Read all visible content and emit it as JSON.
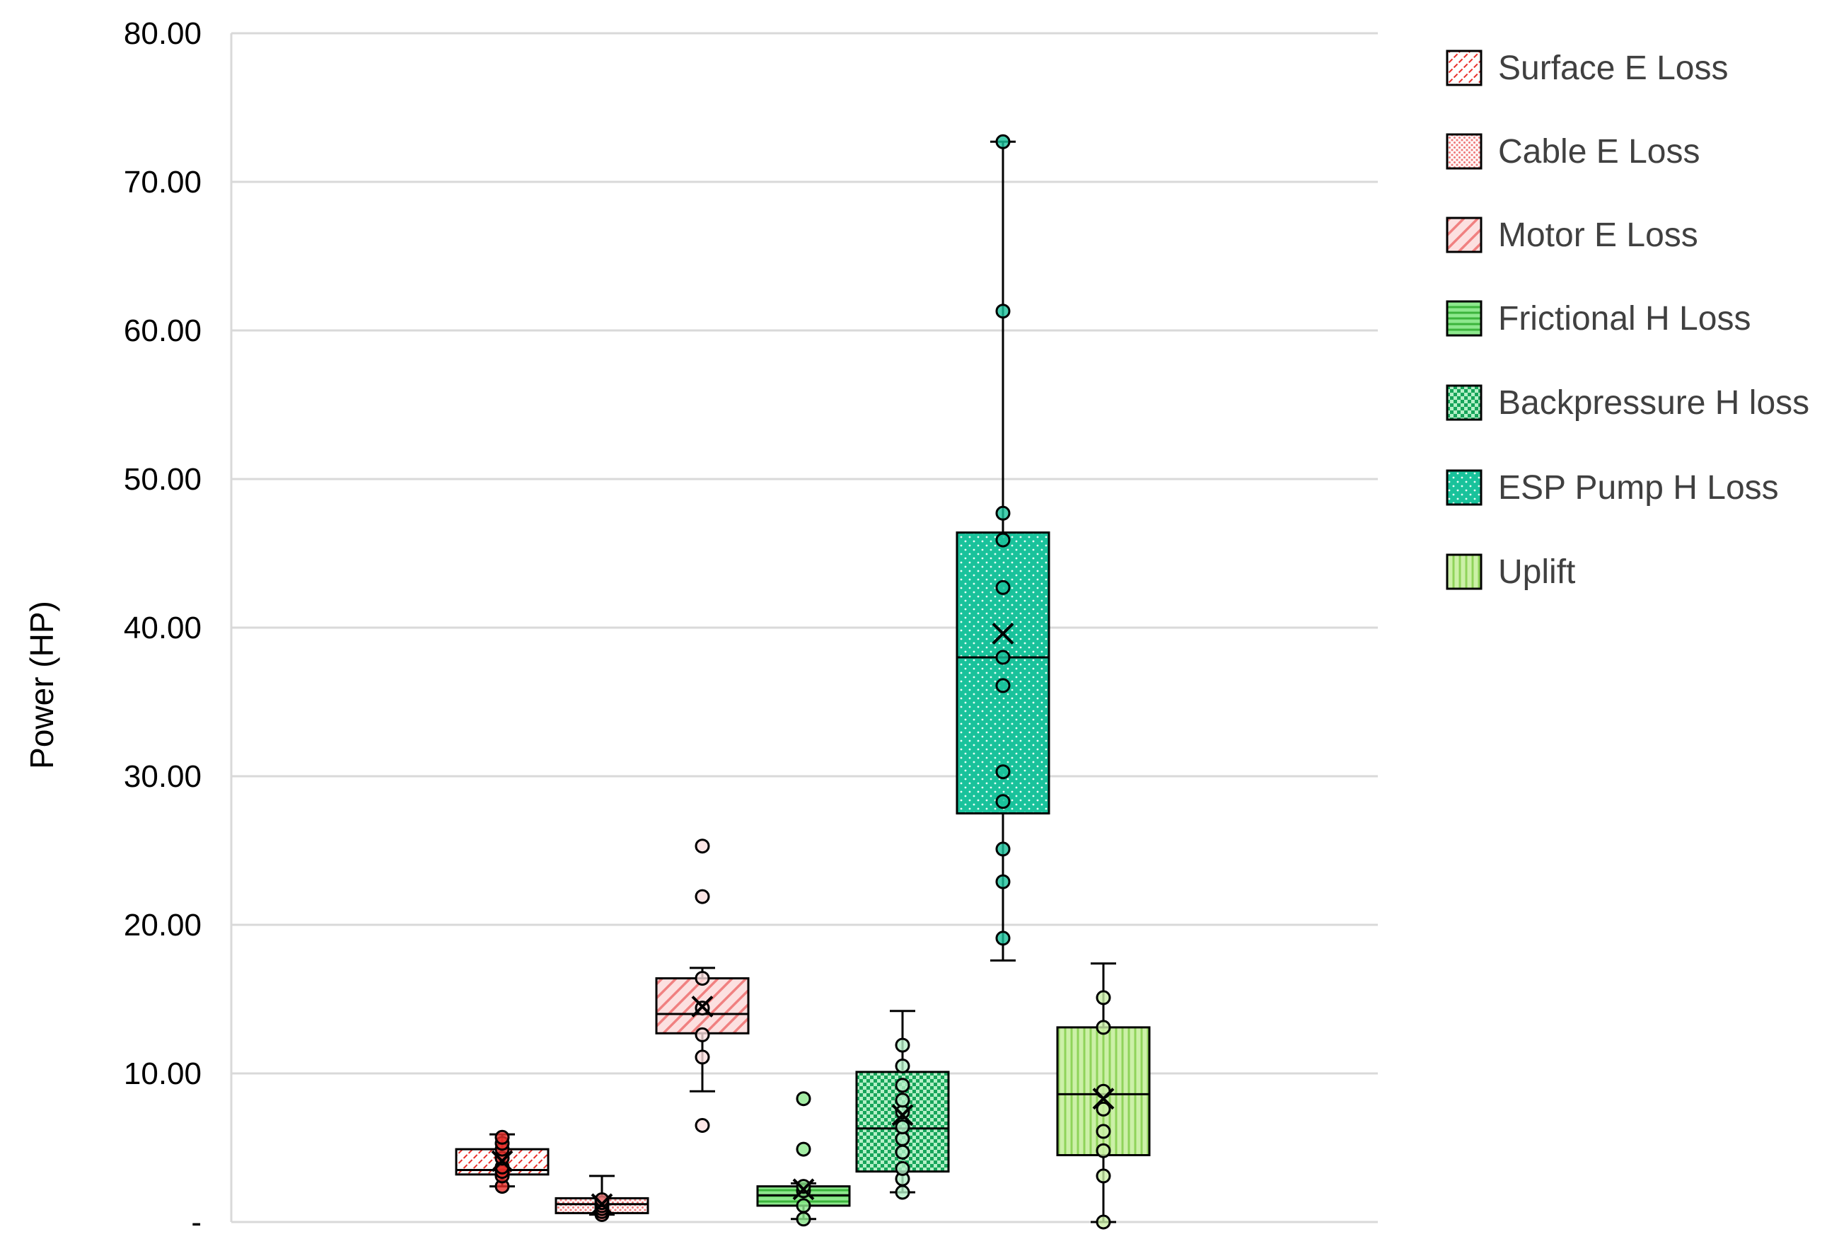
{
  "chart_data": {
    "type": "boxplot",
    "title": "",
    "xlabel": "",
    "ylabel": "Power (HP)",
    "ylim": [
      0,
      80
    ],
    "y_ticks": [
      "-",
      "10.00",
      "20.00",
      "30.00",
      "40.00",
      "50.00",
      "60.00",
      "70.00",
      "80.00"
    ],
    "y_tick_values": [
      0,
      10,
      20,
      30,
      40,
      50,
      60,
      70,
      80
    ],
    "grid": true,
    "legend_position": "right",
    "series": [
      {
        "name": "Surface E Loss",
        "fill": "#ffffff",
        "pattern_color": "#e8302a",
        "stroke": "#000000",
        "pattern": "dense-diag",
        "min": 2.4,
        "q1": 3.2,
        "median": 3.5,
        "q3": 4.9,
        "max": 5.9,
        "mean": 4.1,
        "points": [
          2.4,
          3.1,
          3.4,
          3.7,
          4.3,
          4.9,
          5.3,
          5.7
        ]
      },
      {
        "name": "Cable E Loss",
        "fill": "#ffffff",
        "pattern_color": "#f08080",
        "stroke": "#000000",
        "pattern": "dots",
        "min": 0.5,
        "q1": 0.6,
        "median": 1.2,
        "q3": 1.6,
        "max": 3.1,
        "mean": 1.2,
        "points": [
          0.5,
          0.7,
          0.9,
          1.1,
          1.3,
          1.5
        ]
      },
      {
        "name": "Motor E Loss",
        "fill": "#fce0e0",
        "pattern_color": "#f08080",
        "stroke": "#000000",
        "pattern": "wide-diag",
        "min": 8.8,
        "q1": 12.7,
        "median": 14.0,
        "q3": 16.4,
        "max": 17.1,
        "mean": 14.5,
        "points": [
          6.5,
          11.1,
          12.6,
          14.4,
          16.4,
          21.9,
          25.3
        ]
      },
      {
        "name": "Frictional H Loss",
        "fill": "#8de88d",
        "pattern_color": "#3cb43c",
        "stroke": "#000000",
        "pattern": "horizontal",
        "min": 0.2,
        "q1": 1.1,
        "median": 1.8,
        "q3": 2.4,
        "max": 2.6,
        "mean": 2.2,
        "points": [
          0.2,
          1.1,
          2.1,
          2.4,
          4.9,
          8.3
        ]
      },
      {
        "name": "Backpressure H loss",
        "fill": "#b5f0c8",
        "pattern_color": "#17a55a",
        "stroke": "#000000",
        "pattern": "checker",
        "min": 2.0,
        "q1": 3.4,
        "median": 6.3,
        "q3": 10.1,
        "max": 14.2,
        "mean": 7.2,
        "points": [
          2.0,
          2.9,
          3.6,
          4.7,
          5.6,
          6.4,
          7.4,
          8.2,
          9.2,
          10.5,
          11.9
        ]
      },
      {
        "name": "ESP Pump H Loss",
        "fill": "#19c29b",
        "pattern_color": "#e9fff6",
        "stroke": "#000000",
        "pattern": "sparse-dots",
        "min": 17.6,
        "q1": 27.5,
        "median": 38.0,
        "q3": 46.4,
        "max": 72.7,
        "mean": 39.6,
        "points": [
          19.1,
          22.9,
          25.1,
          28.3,
          30.3,
          36.1,
          38.0,
          42.7,
          45.9,
          47.7,
          61.3,
          72.7
        ]
      },
      {
        "name": "Uplift",
        "fill": "#ccf0a8",
        "pattern_color": "#8fd35a",
        "stroke": "#000000",
        "pattern": "vertical",
        "min": 0.0,
        "q1": 4.5,
        "median": 8.6,
        "q3": 13.1,
        "max": 17.4,
        "mean": 8.3,
        "points": [
          0.0,
          3.1,
          4.8,
          6.1,
          7.6,
          8.8,
          13.1,
          15.1
        ]
      }
    ]
  }
}
